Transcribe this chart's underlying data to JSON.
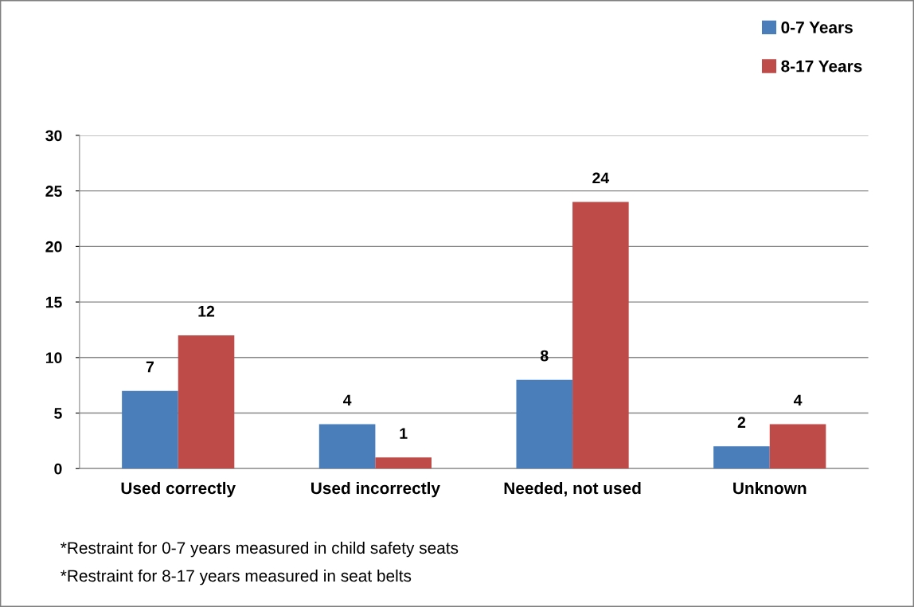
{
  "chart_data": {
    "type": "bar",
    "categories": [
      "Used correctly",
      "Used incorrectly",
      "Needed, not used",
      "Unknown"
    ],
    "series": [
      {
        "name": "0-7 Years",
        "color": "#4a7ebb",
        "values": [
          7,
          4,
          8,
          2
        ]
      },
      {
        "name": "8-17 Years",
        "color": "#be4b48",
        "values": [
          12,
          1,
          24,
          4
        ]
      }
    ],
    "ylim": [
      0,
      30
    ],
    "yticks": [
      0,
      5,
      10,
      15,
      20,
      25,
      30
    ],
    "grid": "y",
    "legend": "top right",
    "data_labels": true,
    "annotations": [
      "*Restraint for 0-7 years measured in child safety seats",
      "*Restraint for 8-17 years measured in seat belts"
    ]
  }
}
